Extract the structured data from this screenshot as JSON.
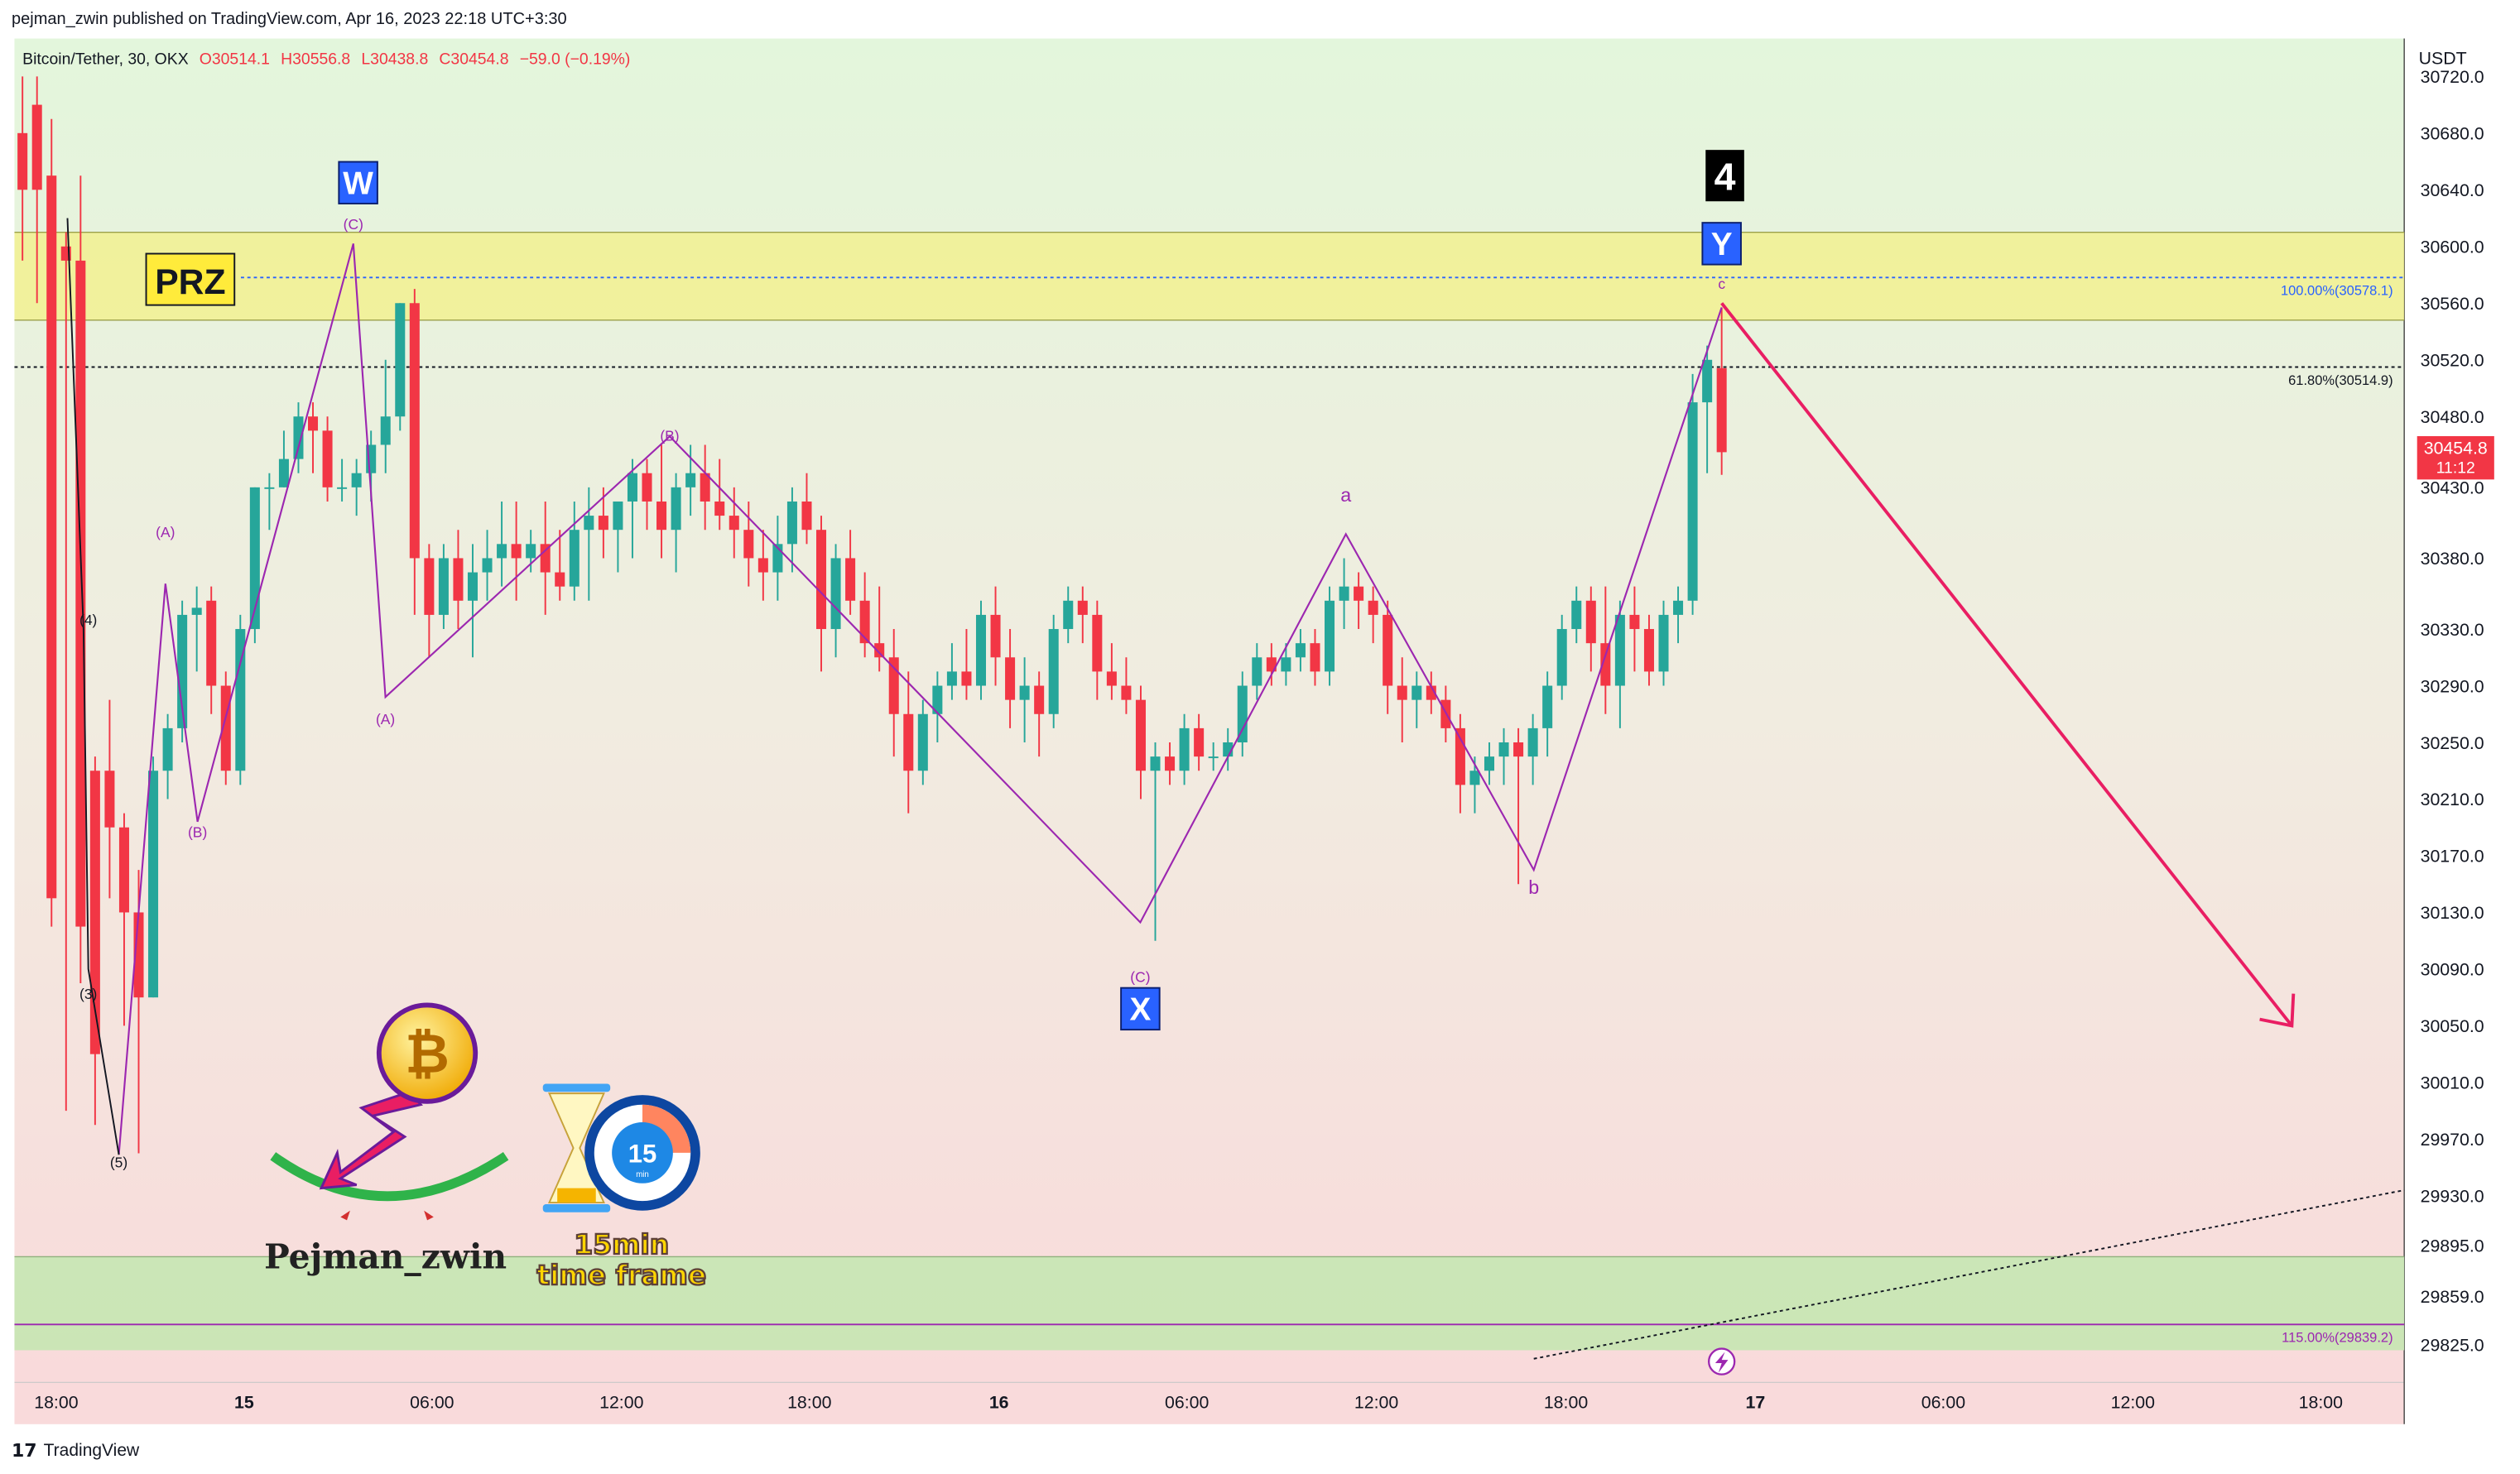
{
  "header": {
    "publisher": "pejman_zwin published on TradingView.com, Apr 16, 2023 22:18 UTC+3:30"
  },
  "footer": {
    "brand": "TradingView",
    "icon": "tradingview-logo-icon"
  },
  "legend": {
    "symbol": "Bitcoin/Tether, 30, OKX",
    "open": "O30514.1",
    "high": "H30556.8",
    "low": "L30438.8",
    "close": "C30454.8",
    "change": "−59.0 (−0.19%)"
  },
  "price_axis": {
    "currency": "USDT",
    "ticks": [
      "30720.0",
      "30680.0",
      "30640.0",
      "30600.0",
      "30560.0",
      "30520.0",
      "30480.0",
      "30430.0",
      "30380.0",
      "30330.0",
      "30290.0",
      "30250.0",
      "30210.0",
      "30170.0",
      "30130.0",
      "30090.0",
      "30050.0",
      "30010.0",
      "29970.0",
      "29930.0",
      "29895.0",
      "29859.0",
      "29825.0"
    ],
    "last_price": "30454.8",
    "countdown": "11:12"
  },
  "time_axis": {
    "ticks": [
      "18:00",
      "15",
      "06:00",
      "12:00",
      "18:00",
      "16",
      "06:00",
      "12:00",
      "18:00",
      "17",
      "06:00",
      "12:00",
      "18:00"
    ]
  },
  "fib_levels": [
    {
      "label": "100.00%(30578.1)",
      "price": 30578.1
    },
    {
      "label": "61.80%(30514.9)",
      "price": 30514.9
    },
    {
      "label": "115.00%(29839.2)",
      "price": 29839.2
    }
  ],
  "zones": {
    "prz_label": "PRZ",
    "prz_low": 30548,
    "prz_high": 30610,
    "bottom_low": 29821,
    "bottom_high": 29887
  },
  "wave_labels": [
    {
      "text": "(4)",
      "x": 55,
      "p": 30333
    },
    {
      "text": "(3)",
      "x": 55,
      "p": 30069
    },
    {
      "text": "(5)",
      "x": 74,
      "p": 29950
    },
    {
      "text": "(A)",
      "x": 103,
      "p": 30395
    },
    {
      "text": "(B)",
      "x": 123,
      "p": 30183
    },
    {
      "text": "(C)",
      "x": 220,
      "p": 30612
    },
    {
      "text": "(A)",
      "x": 240,
      "p": 30263
    },
    {
      "text": "(B)",
      "x": 417,
      "p": 30463
    },
    {
      "text": "(C)",
      "x": 710,
      "p": 30081
    },
    {
      "text": "a",
      "x": 838,
      "p": 30420
    },
    {
      "text": "b",
      "x": 955,
      "p": 30143
    },
    {
      "text": "c",
      "x": 1072,
      "p": 30570
    }
  ],
  "major_labels": [
    {
      "text": "W",
      "x": 223,
      "p": 30645,
      "color": "#2962ff"
    },
    {
      "text": "X",
      "x": 710,
      "p": 30062,
      "color": "#2962ff"
    },
    {
      "text": "Y",
      "x": 1072,
      "p": 30602,
      "color": "#2962ff"
    },
    {
      "text": "4",
      "x": 1074,
      "p": 30650,
      "color": "#000000"
    }
  ],
  "branding": {
    "author": "Pejman_zwin",
    "tf_line1": "15min",
    "tf_line2": "time frame",
    "clock_number": "15",
    "clock_unit": "min"
  },
  "colors": {
    "up": "#26a69a",
    "down": "#f23645",
    "wave": "#9c27b0",
    "arrow": "#e91e63",
    "prz": "#f2f08c"
  },
  "chart_data": {
    "type": "candlestick",
    "symbol": "Bitcoin/Tether",
    "interval": "30",
    "exchange": "OKX",
    "ylim": [
      29815,
      30735
    ],
    "candles": [
      [
        30680,
        30720,
        30590,
        30640
      ],
      [
        30700,
        30720,
        30560,
        30640
      ],
      [
        30650,
        30690,
        30120,
        30140
      ],
      [
        30600,
        30610,
        29990,
        30590
      ],
      [
        30590,
        30650,
        30080,
        30120
      ],
      [
        30230,
        30240,
        29980,
        30030
      ],
      [
        30230,
        30280,
        30140,
        30190
      ],
      [
        30190,
        30200,
        30050,
        30130
      ],
      [
        30130,
        30160,
        29960,
        30070
      ],
      [
        30070,
        30240,
        30070,
        30230
      ],
      [
        30230,
        30270,
        30210,
        30260
      ],
      [
        30260,
        30350,
        30250,
        30340
      ],
      [
        30340,
        30360,
        30300,
        30345
      ],
      [
        30350,
        30360,
        30270,
        30290
      ],
      [
        30290,
        30300,
        30220,
        30230
      ],
      [
        30230,
        30340,
        30220,
        30330
      ],
      [
        30330,
        30430,
        30320,
        30430
      ],
      [
        30430,
        30440,
        30400,
        30430
      ],
      [
        30430,
        30470,
        30430,
        30450
      ],
      [
        30450,
        30490,
        30440,
        30480
      ],
      [
        30480,
        30490,
        30440,
        30470
      ],
      [
        30470,
        30480,
        30420,
        30430
      ],
      [
        30430,
        30450,
        30420,
        30430
      ],
      [
        30430,
        30450,
        30410,
        30440
      ],
      [
        30440,
        30470,
        30420,
        30460
      ],
      [
        30460,
        30520,
        30440,
        30480
      ],
      [
        30480,
        30560,
        30470,
        30560
      ],
      [
        30560,
        30570,
        30340,
        30380
      ],
      [
        30380,
        30390,
        30310,
        30340
      ],
      [
        30340,
        30390,
        30330,
        30380
      ],
      [
        30380,
        30400,
        30330,
        30350
      ],
      [
        30350,
        30390,
        30310,
        30370
      ],
      [
        30370,
        30400,
        30350,
        30380
      ],
      [
        30380,
        30420,
        30360,
        30390
      ],
      [
        30390,
        30420,
        30350,
        30380
      ],
      [
        30380,
        30400,
        30370,
        30390
      ],
      [
        30390,
        30420,
        30340,
        30370
      ],
      [
        30370,
        30400,
        30350,
        30360
      ],
      [
        30360,
        30420,
        30350,
        30400
      ],
      [
        30400,
        30430,
        30350,
        30410
      ],
      [
        30410,
        30430,
        30380,
        30400
      ],
      [
        30400,
        30420,
        30370,
        30420
      ],
      [
        30420,
        30450,
        30380,
        30440
      ],
      [
        30440,
        30450,
        30400,
        30420
      ],
      [
        30420,
        30460,
        30380,
        30400
      ],
      [
        30400,
        30440,
        30370,
        30430
      ],
      [
        30430,
        30460,
        30410,
        30440
      ],
      [
        30440,
        30460,
        30400,
        30420
      ],
      [
        30420,
        30450,
        30400,
        30410
      ],
      [
        30410,
        30430,
        30380,
        30400
      ],
      [
        30400,
        30420,
        30360,
        30380
      ],
      [
        30380,
        30400,
        30350,
        30370
      ],
      [
        30370,
        30410,
        30350,
        30390
      ],
      [
        30390,
        30430,
        30370,
        30420
      ],
      [
        30420,
        30440,
        30390,
        30400
      ],
      [
        30400,
        30410,
        30300,
        30330
      ],
      [
        30330,
        30390,
        30310,
        30380
      ],
      [
        30380,
        30400,
        30340,
        30350
      ],
      [
        30350,
        30370,
        30310,
        30320
      ],
      [
        30320,
        30360,
        30300,
        30310
      ],
      [
        30310,
        30330,
        30240,
        30270
      ],
      [
        30270,
        30300,
        30200,
        30230
      ],
      [
        30230,
        30280,
        30220,
        30270
      ],
      [
        30270,
        30300,
        30250,
        30290
      ],
      [
        30290,
        30320,
        30280,
        30300
      ],
      [
        30300,
        30330,
        30280,
        30290
      ],
      [
        30290,
        30350,
        30280,
        30340
      ],
      [
        30340,
        30360,
        30290,
        30310
      ],
      [
        30310,
        30330,
        30260,
        30280
      ],
      [
        30280,
        30310,
        30250,
        30290
      ],
      [
        30290,
        30300,
        30240,
        30270
      ],
      [
        30270,
        30340,
        30260,
        30330
      ],
      [
        30330,
        30360,
        30320,
        30350
      ],
      [
        30350,
        30360,
        30320,
        30340
      ],
      [
        30340,
        30350,
        30280,
        30300
      ],
      [
        30300,
        30320,
        30280,
        30290
      ],
      [
        30290,
        30310,
        30270,
        30280
      ],
      [
        30280,
        30290,
        30210,
        30230
      ],
      [
        30230,
        30250,
        30110,
        30240
      ],
      [
        30240,
        30250,
        30220,
        30230
      ],
      [
        30230,
        30270,
        30220,
        30260
      ],
      [
        30260,
        30270,
        30230,
        30240
      ],
      [
        30240,
        30250,
        30230,
        30240
      ],
      [
        30240,
        30260,
        30230,
        30250
      ],
      [
        30250,
        30300,
        30240,
        30290
      ],
      [
        30290,
        30320,
        30280,
        30310
      ],
      [
        30310,
        30320,
        30290,
        30300
      ],
      [
        30300,
        30320,
        30290,
        30310
      ],
      [
        30310,
        30330,
        30300,
        30320
      ],
      [
        30320,
        30330,
        30290,
        30300
      ],
      [
        30300,
        30360,
        30290,
        30350
      ],
      [
        30350,
        30380,
        30330,
        30360
      ],
      [
        30360,
        30370,
        30330,
        30350
      ],
      [
        30350,
        30360,
        30320,
        30340
      ],
      [
        30340,
        30350,
        30270,
        30290
      ],
      [
        30290,
        30310,
        30250,
        30280
      ],
      [
        30280,
        30300,
        30260,
        30290
      ],
      [
        30290,
        30300,
        30270,
        30280
      ],
      [
        30280,
        30290,
        30250,
        30260
      ],
      [
        30260,
        30270,
        30200,
        30220
      ],
      [
        30220,
        30240,
        30200,
        30230
      ],
      [
        30230,
        30250,
        30220,
        30240
      ],
      [
        30240,
        30260,
        30220,
        30250
      ],
      [
        30250,
        30260,
        30150,
        30240
      ],
      [
        30240,
        30270,
        30220,
        30260
      ],
      [
        30260,
        30300,
        30240,
        30290
      ],
      [
        30290,
        30340,
        30280,
        30330
      ],
      [
        30330,
        30360,
        30320,
        30350
      ],
      [
        30350,
        30360,
        30300,
        30320
      ],
      [
        30320,
        30360,
        30270,
        30290
      ],
      [
        30290,
        30350,
        30260,
        30340
      ],
      [
        30340,
        30360,
        30300,
        30330
      ],
      [
        30330,
        30340,
        30290,
        30300
      ],
      [
        30300,
        30350,
        30290,
        30340
      ],
      [
        30340,
        30360,
        30320,
        30350
      ],
      [
        30350,
        30510,
        30340,
        30490
      ],
      [
        30490,
        30530,
        30440,
        30520
      ],
      [
        30514.1,
        30556.8,
        30438.8,
        30454.8
      ]
    ],
    "wave_path": [
      [
        74,
        29959
      ],
      [
        103,
        30362
      ],
      [
        123,
        30194
      ],
      [
        220,
        30602
      ],
      [
        240,
        30282
      ],
      [
        417,
        30466
      ],
      [
        710,
        30123
      ],
      [
        838,
        30397
      ],
      [
        955,
        30160
      ],
      [
        1072,
        30557
      ]
    ],
    "projection": {
      "from_price": 30560,
      "to_price": 30050
    },
    "trendline": {
      "from_price": 29815,
      "to_price": 29934
    }
  }
}
